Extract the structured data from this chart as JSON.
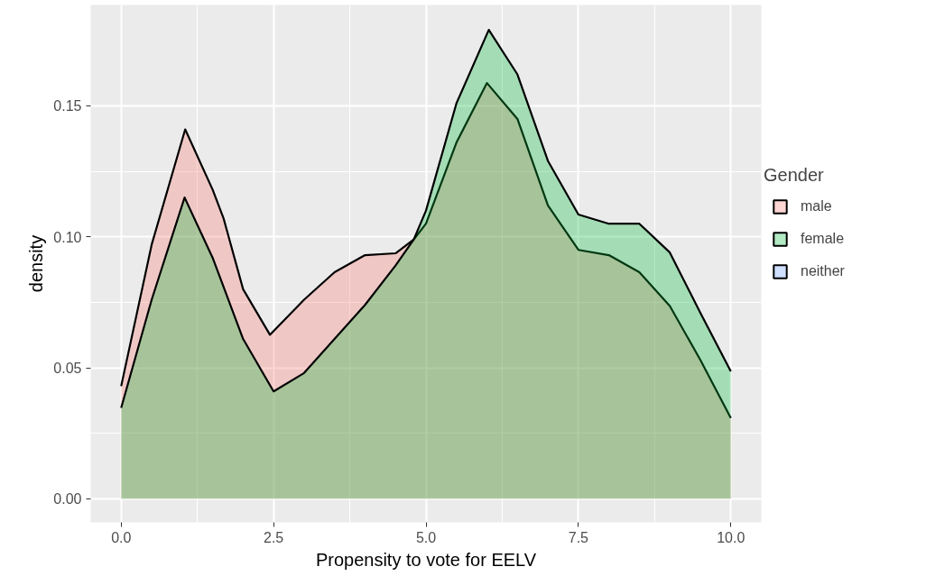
{
  "chart_data": {
    "type": "area",
    "xlabel": "Propensity to vote for EELV",
    "ylabel": "density",
    "legend_title": "Gender",
    "legend": "right",
    "grid": true,
    "xlim": [
      -0.5,
      10.5
    ],
    "ylim": [
      -0.009,
      0.1885
    ],
    "xticks": [
      {
        "value": 0,
        "label": "0.0"
      },
      2.5,
      {
        "value": 5,
        "label": "5.0"
      },
      7.5,
      {
        "value": 10,
        "label": "10.0"
      }
    ],
    "yticks": [
      {
        "value": 0,
        "label": "0.00"
      },
      0.05,
      {
        "value": 0.1,
        "label": "0.10"
      },
      0.15
    ],
    "series": [
      {
        "name": "male",
        "color": "#f8766d",
        "x": [
          0,
          0.5,
          1.05,
          1.5,
          1.68,
          2,
          2.44,
          3,
          3.5,
          4,
          4.5,
          4.8,
          5,
          5.5,
          6.0,
          6.5,
          7,
          7.5,
          8,
          8.5,
          9,
          9.5,
          10
        ],
        "values": [
          0.043,
          0.097,
          0.141,
          0.118,
          0.107,
          0.08,
          0.0626,
          0.076,
          0.0865,
          0.093,
          0.0937,
          0.099,
          0.105,
          0.136,
          0.1587,
          0.145,
          0.112,
          0.095,
          0.093,
          0.0865,
          0.0736,
          0.053,
          0.0308
        ]
      },
      {
        "name": "female",
        "color": "#00ba38",
        "x": [
          0,
          0.5,
          1.04,
          1.5,
          2,
          2.5,
          3,
          3.5,
          4,
          4.5,
          4.8,
          5,
          5.5,
          6.03,
          6.5,
          7,
          7.5,
          8,
          8.5,
          9,
          9.5,
          10
        ],
        "values": [
          0.0347,
          0.076,
          0.115,
          0.092,
          0.061,
          0.041,
          0.048,
          0.061,
          0.074,
          0.089,
          0.099,
          0.11,
          0.151,
          0.179,
          0.162,
          0.129,
          0.1085,
          0.105,
          0.105,
          0.094,
          0.071,
          0.0486
        ]
      },
      {
        "name": "neither",
        "color": "#619cff"
      }
    ]
  }
}
